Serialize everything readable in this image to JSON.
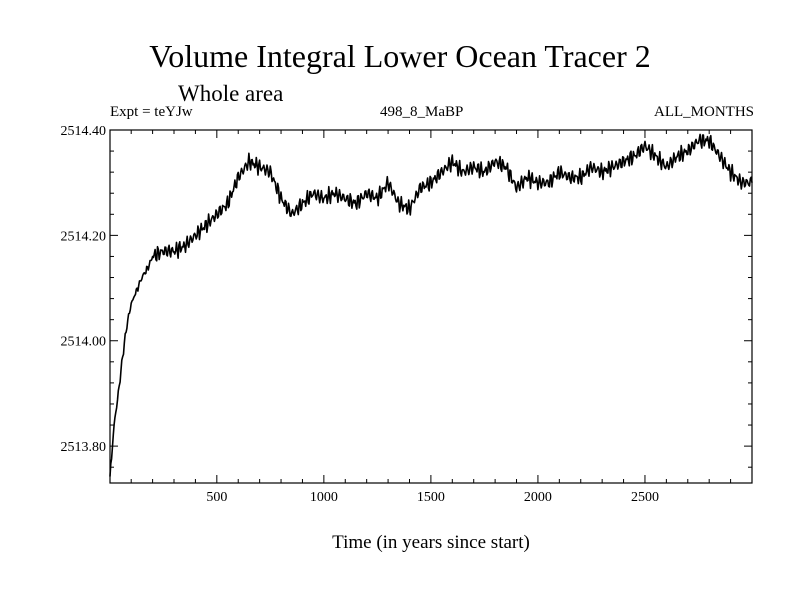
{
  "chart_data": {
    "type": "line",
    "title": "Volume Integral Lower Ocean Tracer 2",
    "subtitle": "Whole area",
    "experiment_label": "Expt = teYJw",
    "run_label": "498_8_MaBP",
    "months_label": "ALL_MONTHS",
    "xlabel": "Time (in years since start)",
    "ylabel": "",
    "xlim": [
      1,
      3000
    ],
    "ylim": [
      2513.73,
      2514.4
    ],
    "xticks": [
      500,
      1000,
      1500,
      2000,
      2500
    ],
    "xtick_labels": [
      "500",
      "1000",
      "1500",
      "2000",
      "2500"
    ],
    "yticks": [
      2513.8,
      2514.0,
      2514.2,
      2514.4
    ],
    "ytick_labels": [
      "2513.80",
      "2514.00",
      "2514.20",
      "2514.40"
    ],
    "series": [
      {
        "name": "Volume Integral Lower Ocean Tracer 2",
        "x": [
          1,
          20,
          40,
          60,
          80,
          100,
          120,
          150,
          180,
          200,
          250,
          300,
          350,
          400,
          450,
          500,
          550,
          600,
          650,
          700,
          750,
          800,
          850,
          900,
          950,
          1000,
          1050,
          1100,
          1150,
          1200,
          1250,
          1300,
          1350,
          1400,
          1450,
          1500,
          1550,
          1600,
          1650,
          1700,
          1750,
          1800,
          1850,
          1900,
          1950,
          2000,
          2050,
          2100,
          2150,
          2200,
          2250,
          2300,
          2350,
          2400,
          2450,
          2500,
          2550,
          2600,
          2650,
          2700,
          2750,
          2800,
          2850,
          2900,
          2950,
          3000
        ],
        "values": [
          2513.74,
          2513.84,
          2513.9,
          2513.97,
          2514.03,
          2514.07,
          2514.09,
          2514.12,
          2514.14,
          2514.16,
          2514.17,
          2514.17,
          2514.18,
          2514.2,
          2514.22,
          2514.24,
          2514.26,
          2514.31,
          2514.34,
          2514.33,
          2514.32,
          2514.27,
          2514.24,
          2514.26,
          2514.28,
          2514.27,
          2514.28,
          2514.27,
          2514.26,
          2514.28,
          2514.27,
          2514.3,
          2514.26,
          2514.25,
          2514.29,
          2514.3,
          2514.32,
          2514.34,
          2514.32,
          2514.33,
          2514.32,
          2514.34,
          2514.33,
          2514.29,
          2514.31,
          2514.3,
          2514.3,
          2514.32,
          2514.31,
          2514.31,
          2514.33,
          2514.32,
          2514.33,
          2514.34,
          2514.35,
          2514.37,
          2514.35,
          2514.33,
          2514.35,
          2514.36,
          2514.38,
          2514.38,
          2514.35,
          2514.32,
          2514.3,
          2514.3
        ]
      }
    ]
  }
}
